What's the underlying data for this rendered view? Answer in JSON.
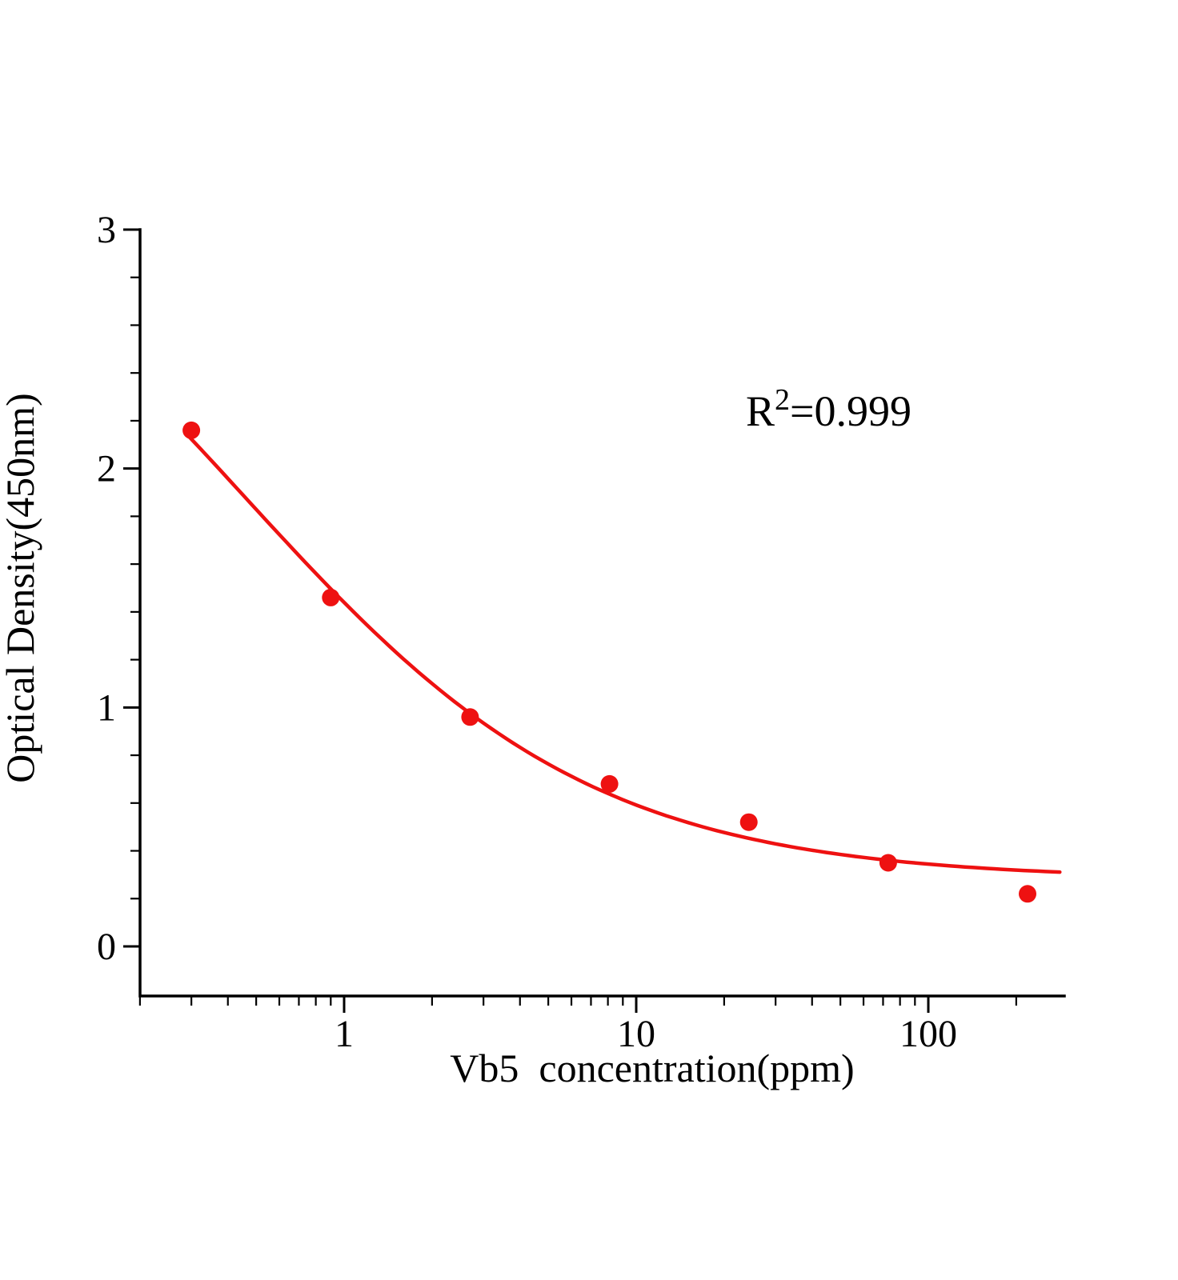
{
  "chart_data": {
    "type": "scatter",
    "title": "",
    "xlabel": "Vb5  concentration(ppm)",
    "ylabel": "Optical Density(450nm)",
    "x_scale": "log",
    "xlim": [
      0.2,
      290
    ],
    "ylim": [
      -0.2,
      3
    ],
    "grid": false,
    "legend": "none",
    "x_ticks": [
      1,
      10,
      100
    ],
    "x_tick_labels": [
      "1",
      "10",
      "100"
    ],
    "y_ticks": [
      0,
      1,
      2,
      3
    ],
    "y_tick_labels": [
      "0",
      "1",
      "2",
      "3"
    ],
    "annotation": {
      "base": "R",
      "sup": "2",
      "rest": "=0.999"
    },
    "points": {
      "x": [
        0.3,
        0.9,
        2.7,
        8.1,
        24.3,
        72.9,
        218.7
      ],
      "y": [
        2.16,
        1.46,
        0.96,
        0.68,
        0.52,
        0.35,
        0.22
      ]
    },
    "fit": {
      "type": "4PL",
      "a": 3.5,
      "b": 0.72,
      "c": 0.45,
      "d": 0.28
    },
    "color": "#ee1111"
  }
}
